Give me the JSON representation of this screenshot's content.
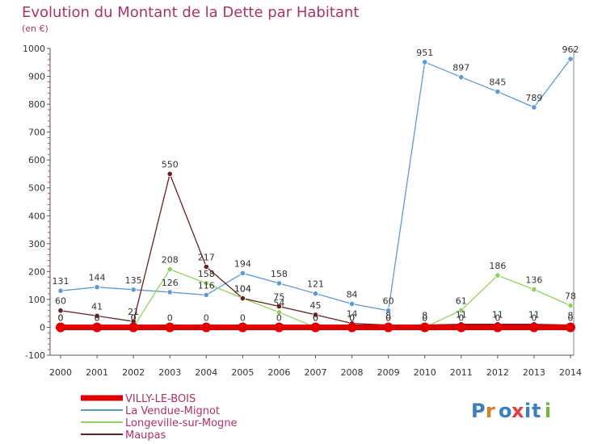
{
  "chart_data": {
    "type": "line",
    "title": "Evolution du Montant de la Dette par Habitant",
    "subtitle": "(en €)",
    "xlabel": "",
    "ylabel": "",
    "x": [
      "2000",
      "2001",
      "2002",
      "2003",
      "2004",
      "2005",
      "2006",
      "2007",
      "2008",
      "2009",
      "2010",
      "2011",
      "2012",
      "2013",
      "2014"
    ],
    "ylim": [
      -100,
      1000
    ],
    "yticks": [
      -100,
      0,
      100,
      200,
      300,
      400,
      500,
      600,
      700,
      800,
      900,
      1000
    ],
    "grid": false,
    "legend_position": "bottom-left",
    "series": [
      {
        "name": "VILLY-LE-BOIS",
        "color": "#e00000",
        "values": [
          0,
          0,
          0,
          0,
          0,
          0,
          0,
          0,
          0,
          0,
          0,
          0,
          0,
          0,
          0
        ],
        "labels": [
          "0",
          "0",
          "0",
          "0",
          "0",
          "0",
          "0",
          "0",
          "0",
          "0",
          "0",
          "0",
          "0",
          "0",
          "0"
        ]
      },
      {
        "name": "La Vendue-Mignot",
        "color": "#5b9bd5",
        "values": [
          131,
          144,
          135,
          126,
          116,
          194,
          158,
          121,
          84,
          60,
          951,
          897,
          845,
          789,
          962
        ],
        "labels": [
          "131",
          "144",
          "135",
          "126",
          "116",
          "194",
          "158",
          "121",
          "84",
          "60",
          "951",
          "897",
          "845",
          "789",
          "962"
        ]
      },
      {
        "name": "Longeville-sur-Mogne",
        "color": "#8fd45a",
        "values": [
          0,
          0,
          0,
          208,
          158,
          104,
          54,
          0,
          0,
          0,
          0,
          61,
          186,
          136,
          78
        ],
        "labels": [
          "0",
          "0",
          "0",
          "208",
          "158",
          "104",
          "54",
          "0",
          "0",
          "0",
          "0",
          "61",
          "186",
          "136",
          "78"
        ]
      },
      {
        "name": "Maupas",
        "color": "#6b1f1f",
        "values": [
          60,
          41,
          21,
          550,
          217,
          104,
          75,
          45,
          14,
          8,
          8,
          11,
          11,
          11,
          8
        ],
        "labels": [
          "60",
          "41",
          "21",
          "550",
          "217",
          "104",
          "75",
          "45",
          "14",
          "8",
          "8",
          "11",
          "11",
          "11",
          "8"
        ]
      }
    ]
  },
  "logo": {
    "text": "Proxiti"
  }
}
